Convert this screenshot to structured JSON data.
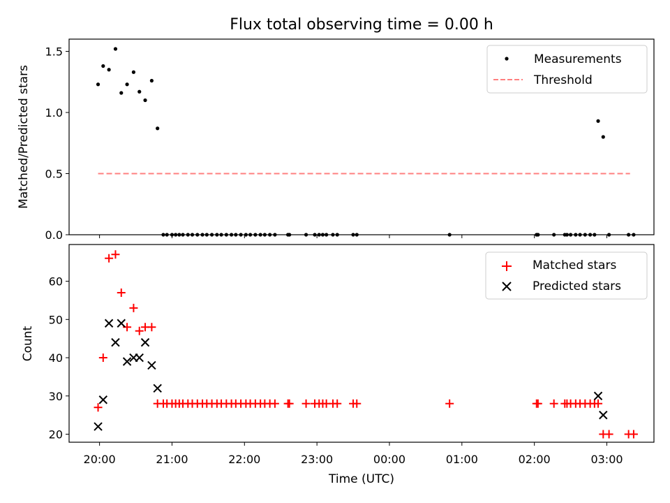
{
  "chart_data": [
    {
      "type": "scatter",
      "title": "Flux total observing time = 0.00 h",
      "xlabel": "",
      "ylabel": "Matched/Predicted stars",
      "ylim": [
        0,
        1.6
      ],
      "yticks": [
        "0.0",
        "0.5",
        "1.0",
        "1.5"
      ],
      "xlim_hours": [
        19.58,
        27.65
      ],
      "legend_position": "top-right",
      "series": [
        {
          "name": "Measurements",
          "marker": "dot",
          "color": "#000000",
          "x": [
            19.98,
            20.05,
            20.13,
            20.22,
            20.3,
            20.38,
            20.47,
            20.55,
            20.63,
            20.72,
            20.8,
            20.88,
            20.93,
            21.0,
            21.05,
            21.1,
            21.15,
            21.22,
            21.28,
            21.35,
            21.42,
            21.48,
            21.55,
            21.62,
            21.68,
            21.75,
            21.82,
            21.88,
            21.95,
            22.02,
            22.08,
            22.15,
            22.22,
            22.28,
            22.35,
            22.42,
            22.6,
            22.62,
            22.85,
            22.97,
            23.03,
            23.08,
            23.13,
            23.22,
            23.28,
            23.5,
            23.55,
            24.83,
            26.03,
            26.05,
            26.27,
            26.42,
            26.45,
            26.5,
            26.57,
            26.63,
            26.7,
            26.77,
            26.83,
            26.88,
            26.95,
            27.03,
            27.3,
            27.37
          ],
          "y": [
            1.23,
            1.38,
            1.35,
            1.52,
            1.16,
            1.23,
            1.33,
            1.17,
            1.1,
            1.26,
            0.87,
            0,
            0,
            0,
            0,
            0,
            0,
            0,
            0,
            0,
            0,
            0,
            0,
            0,
            0,
            0,
            0,
            0,
            0,
            0,
            0,
            0,
            0,
            0,
            0,
            0,
            0,
            0,
            0,
            0,
            0,
            0,
            0,
            0,
            0,
            0,
            0,
            0,
            0,
            0,
            0,
            0,
            0,
            0,
            0,
            0,
            0,
            0,
            0,
            0.93,
            0.8,
            0,
            0,
            0
          ]
        },
        {
          "name": "Threshold",
          "style": "dashed",
          "color": "#ff7f7f",
          "x": [
            19.98,
            27.32
          ],
          "y": [
            0.5,
            0.5
          ]
        }
      ]
    },
    {
      "type": "scatter",
      "title": "",
      "xlabel": "Time (UTC)",
      "ylabel": "Count",
      "ylim": [
        17.9,
        69.6
      ],
      "yticks": [
        "20",
        "30",
        "40",
        "50",
        "60"
      ],
      "xlim_hours": [
        19.58,
        27.65
      ],
      "xticks": [
        "20:00",
        "21:00",
        "22:00",
        "23:00",
        "00:00",
        "01:00",
        "02:00",
        "03:00"
      ],
      "legend_position": "top-right",
      "series": [
        {
          "name": "Matched stars",
          "marker": "plus",
          "color": "#ff0000",
          "x": [
            19.98,
            20.05,
            20.13,
            20.22,
            20.3,
            20.38,
            20.47,
            20.55,
            20.63,
            20.72,
            20.8,
            20.88,
            20.93,
            21.0,
            21.05,
            21.1,
            21.15,
            21.22,
            21.28,
            21.35,
            21.42,
            21.48,
            21.55,
            21.62,
            21.68,
            21.75,
            21.82,
            21.88,
            21.95,
            22.02,
            22.08,
            22.15,
            22.22,
            22.28,
            22.35,
            22.42,
            22.6,
            22.62,
            22.85,
            22.97,
            23.03,
            23.08,
            23.13,
            23.22,
            23.28,
            23.5,
            23.55,
            24.83,
            26.03,
            26.05,
            26.27,
            26.42,
            26.45,
            26.5,
            26.57,
            26.63,
            26.7,
            26.77,
            26.83,
            26.88,
            26.95,
            27.03,
            27.3,
            27.37
          ],
          "y": [
            27,
            40,
            66,
            67,
            57,
            48,
            53,
            47,
            48,
            48,
            28,
            28,
            28,
            28,
            28,
            28,
            28,
            28,
            28,
            28,
            28,
            28,
            28,
            28,
            28,
            28,
            28,
            28,
            28,
            28,
            28,
            28,
            28,
            28,
            28,
            28,
            28,
            28,
            28,
            28,
            28,
            28,
            28,
            28,
            28,
            28,
            28,
            28,
            28,
            28,
            28,
            28,
            28,
            28,
            28,
            28,
            28,
            28,
            28,
            28,
            20,
            20,
            20,
            20
          ]
        },
        {
          "name": "Predicted stars",
          "marker": "x",
          "color": "#000000",
          "x": [
            19.98,
            20.05,
            20.13,
            20.22,
            20.3,
            20.38,
            20.47,
            20.55,
            20.63,
            20.72,
            20.8,
            26.88,
            26.95
          ],
          "y": [
            22,
            29,
            49,
            44,
            49,
            39,
            40,
            40,
            44,
            38,
            32,
            30,
            25
          ]
        }
      ]
    }
  ]
}
